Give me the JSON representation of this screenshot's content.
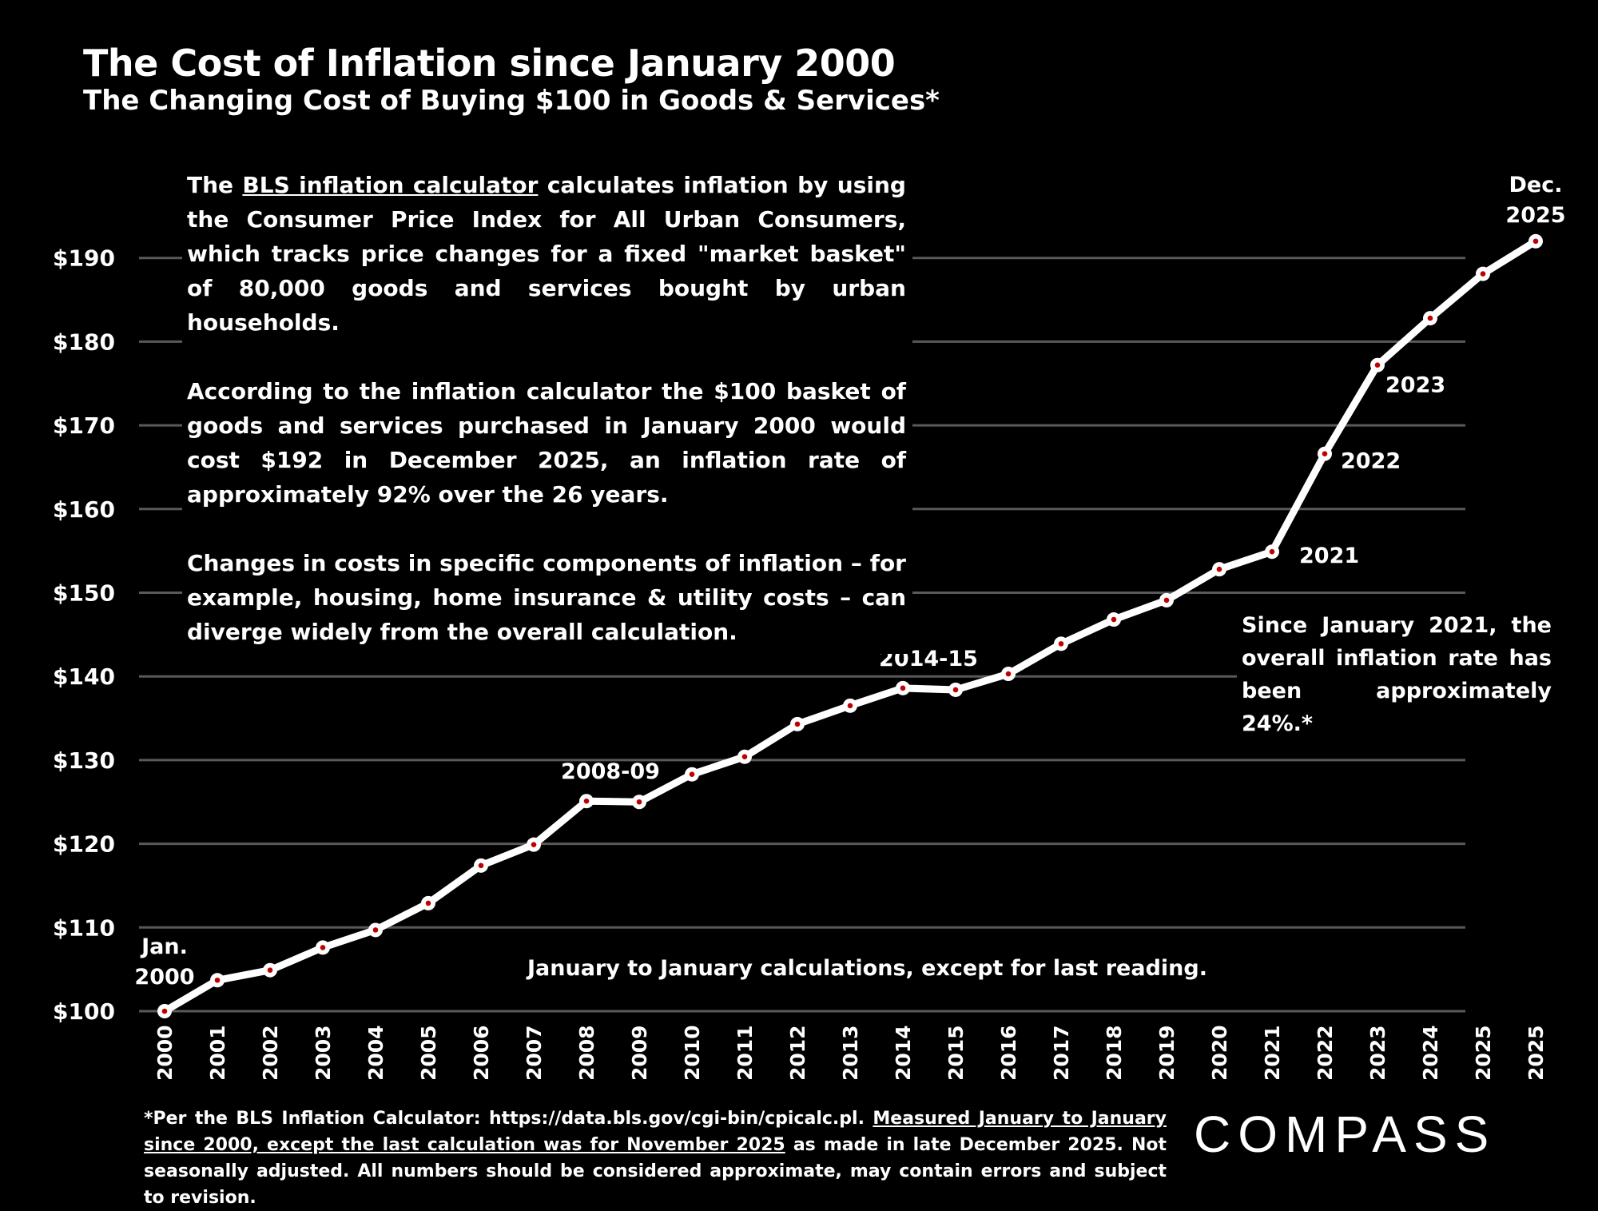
{
  "header": {
    "title": "The Cost of Inflation since January 2000",
    "subtitle": "The Changing Cost of Buying $100 in Goods & Services*"
  },
  "explanation": {
    "p1_pre": "The ",
    "p1_link": "BLS inflation calculator",
    "p1_post": " calculates inflation by using the Consumer Price Index for All Urban Consumers, which tracks price changes for a fixed \"market basket\" of 80,000 goods and services bought by urban households.",
    "p2": "According to the inflation calculator the $100 basket of goods and services purchased in January 2000 would cost $192 in December 2025, an inflation rate of approximately 92% over the 26 years.",
    "p3": "Changes in costs in specific components of inflation – for example, housing, home insurance & utility costs – can diverge widely from the overall calculation."
  },
  "since_note": "Since January 2021, the overall inflation rate has been approximately 24%.*",
  "calc_note": "January to January calculations, except for last reading.",
  "footnote": {
    "part1": "*Per the BLS Inflation Calculator:  https://data.bls.gov/cgi-bin/cpicalc.pl. ",
    "part2_underlined": "Measured January to January since 2000, except the last calculation was for November 2025",
    "part3": " as made in late December 2025. Not seasonally adjusted. All numbers should be considered approximate, may contain errors and subject to revision."
  },
  "logo": {
    "before": "C",
    "o": "O",
    "after": "MPASS"
  },
  "colors": {
    "background": "#000000",
    "line": "#ffffff",
    "marker_dot": "#c00000",
    "grid": "#595959"
  },
  "chart_data": {
    "type": "line",
    "title": "The Cost of Inflation since January 2000",
    "ylim": [
      100,
      190
    ],
    "y_ticks": [
      "$100",
      "$110",
      "$120",
      "$130",
      "$140",
      "$150",
      "$160",
      "$170",
      "$180",
      "$190"
    ],
    "grid": true,
    "categories": [
      "2000",
      "2001",
      "2002",
      "2003",
      "2004",
      "2005",
      "2006",
      "2007",
      "2008",
      "2009",
      "2010",
      "2011",
      "2012",
      "2013",
      "2014",
      "2015",
      "2016",
      "2017",
      "2018",
      "2019",
      "2020",
      "2021",
      "2022",
      "2023",
      "2024",
      "2025",
      "2025"
    ],
    "values": [
      100,
      103.7,
      104.9,
      107.6,
      109.7,
      112.9,
      117.4,
      119.9,
      125.1,
      125.0,
      128.3,
      130.4,
      134.3,
      136.5,
      138.6,
      138.4,
      140.3,
      143.9,
      146.8,
      149.1,
      152.8,
      154.9,
      166.6,
      177.2,
      182.8,
      188.1,
      192.0
    ],
    "annotations": [
      {
        "index": 0,
        "lines": [
          "Jan.",
          "2000"
        ]
      },
      {
        "index": 8,
        "lines": [
          "2008-09"
        ]
      },
      {
        "index": 14,
        "lines": [
          "2014-15"
        ]
      },
      {
        "index": 21,
        "lines": [
          "2021"
        ]
      },
      {
        "index": 22,
        "lines": [
          "2022"
        ]
      },
      {
        "index": 23,
        "lines": [
          "2023"
        ]
      },
      {
        "index": 26,
        "lines": [
          "Dec.",
          "2025"
        ]
      }
    ]
  }
}
